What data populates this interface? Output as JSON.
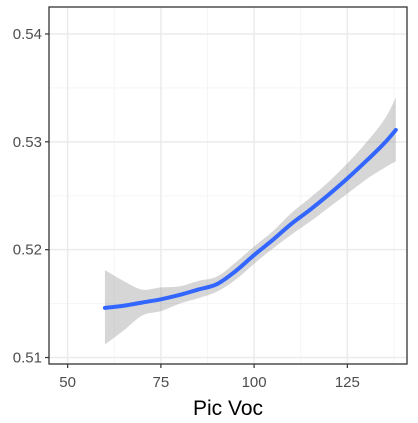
{
  "chart_data": {
    "type": "line",
    "title": "",
    "xlabel": "Pic Voc",
    "ylabel": "",
    "xlim": [
      45,
      141
    ],
    "ylim": [
      0.5094,
      0.5425
    ],
    "x_ticks": [
      50,
      75,
      100,
      125
    ],
    "x_tick_labels": [
      "50",
      "75",
      "100",
      "125"
    ],
    "y_ticks": [
      0.51,
      0.52,
      0.53,
      0.54
    ],
    "y_tick_labels": [
      "0.51",
      "0.52",
      "0.53",
      "0.54"
    ],
    "grid": true,
    "series": [
      {
        "x": [
          60,
          65,
          70,
          75,
          80,
          85,
          90,
          95,
          100,
          105,
          110,
          115,
          120,
          125,
          130,
          135,
          138
        ],
        "y": [
          0.5146,
          0.5148,
          0.5151,
          0.5154,
          0.5158,
          0.5163,
          0.5168,
          0.518,
          0.5195,
          0.5209,
          0.5224,
          0.5237,
          0.5251,
          0.5266,
          0.5282,
          0.5299,
          0.5311
        ],
        "lower": [
          0.5112,
          0.5125,
          0.5139,
          0.5143,
          0.515,
          0.5155,
          0.5161,
          0.5172,
          0.5187,
          0.5201,
          0.5214,
          0.5226,
          0.5239,
          0.5252,
          0.5265,
          0.5276,
          0.5282
        ],
        "upper": [
          0.5181,
          0.5171,
          0.5163,
          0.5165,
          0.5166,
          0.5171,
          0.5175,
          0.5188,
          0.5203,
          0.5217,
          0.5234,
          0.5248,
          0.5263,
          0.528,
          0.5299,
          0.5321,
          0.5341
        ]
      }
    ],
    "colors": {
      "line": "#3366ff",
      "ribbon": "#999999",
      "panel_border": "#333333",
      "grid_major": "#ebebeb",
      "grid_minor": "#f5f5f5",
      "tick_label": "#4d4d4d"
    }
  }
}
